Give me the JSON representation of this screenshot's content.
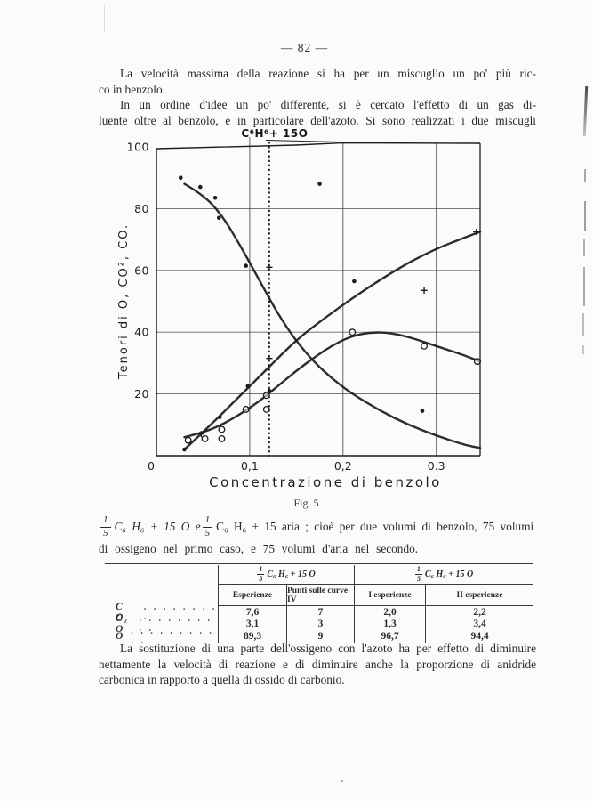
{
  "page": {
    "number": "— 82 —"
  },
  "paragraphs": {
    "p1": {
      "lines": [
        "La velocità massima della reazione si ha per un miscuglio un po' più ric-",
        "co in benzolo."
      ]
    },
    "p2": {
      "lines": [
        "In un ordine d'idee un po' differente, si è cercato l'effetto di un gas di-",
        "luente oltre al benzolo, e in particolare dell'azoto. Si sono realizzati i due miscugli"
      ]
    },
    "p3": {
      "lines": [
        "La sostituzione di una parte dell'ossigeno con l'azoto ha per effetto di diminuire",
        "nettamente la velocità di reazione e di diminuire anche la proporzione di anidride",
        "carbonica in rapporto a quella di ossido di carbonio."
      ]
    }
  },
  "figure": {
    "caption": "Fig. 5."
  },
  "mixture": {
    "frac_num": "1",
    "frac_den": "5",
    "seg1": "C₆ H₆ + 15 O  e",
    "seg2": "C₆ H₆ + 15 aria ; cioè per due volumi di benzolo, 75 volumi",
    "line2": "di ossigeno nel primo caso, e 75 volumi d'aria nel secondo."
  },
  "chart_data": {
    "type": "line",
    "title": "",
    "annotation": "C⁶H⁶+ 15O",
    "xlabel": "Concentrazione di benzolo",
    "ylabel": "Tenori di O, CO², CO.",
    "xlim": [
      0,
      0.347
    ],
    "ylim": [
      0,
      100
    ],
    "grid": true,
    "xticks": [
      {
        "value": 0,
        "label": "0"
      },
      {
        "value": 0.1,
        "label": "0,1"
      },
      {
        "value": 0.2,
        "label": "0,2"
      },
      {
        "value": 0.3,
        "label": "0.3"
      }
    ],
    "yticks": [
      {
        "value": 20,
        "label": "20"
      },
      {
        "value": 40,
        "label": "40"
      },
      {
        "value": 60,
        "label": "60"
      },
      {
        "value": 80,
        "label": "80"
      },
      {
        "value": 100,
        "label": "100"
      }
    ],
    "vline": {
      "x": 0.121,
      "style": "dotted"
    },
    "series": [
      {
        "name": "O",
        "points": [
          [
            0.03,
            88
          ],
          [
            0.05,
            84.5
          ],
          [
            0.07,
            78
          ],
          [
            0.09,
            68
          ],
          [
            0.11,
            57
          ],
          [
            0.13,
            46
          ],
          [
            0.15,
            37
          ],
          [
            0.17,
            30
          ],
          [
            0.19,
            24.5
          ],
          [
            0.21,
            20
          ],
          [
            0.24,
            14.5
          ],
          [
            0.27,
            10
          ],
          [
            0.3,
            6.5
          ],
          [
            0.33,
            3.5
          ],
          [
            0.347,
            2.5
          ]
        ]
      },
      {
        "name": "CO",
        "points": [
          [
            0.03,
            2
          ],
          [
            0.06,
            10.5
          ],
          [
            0.09,
            19.5
          ],
          [
            0.12,
            28.5
          ],
          [
            0.15,
            37.5
          ],
          [
            0.18,
            44.5
          ],
          [
            0.21,
            51
          ],
          [
            0.24,
            57
          ],
          [
            0.27,
            62.5
          ],
          [
            0.3,
            67
          ],
          [
            0.325,
            70
          ],
          [
            0.347,
            72.5
          ]
        ]
      },
      {
        "name": "CO2",
        "points": [
          [
            0.03,
            6
          ],
          [
            0.05,
            7.5
          ],
          [
            0.07,
            10
          ],
          [
            0.09,
            13.5
          ],
          [
            0.11,
            17.5
          ],
          [
            0.13,
            22.5
          ],
          [
            0.15,
            27.5
          ],
          [
            0.17,
            32
          ],
          [
            0.19,
            36
          ],
          [
            0.21,
            38.8
          ],
          [
            0.23,
            40
          ],
          [
            0.25,
            39.8
          ],
          [
            0.27,
            38.5
          ],
          [
            0.29,
            36.5
          ],
          [
            0.31,
            34.5
          ],
          [
            0.33,
            32.5
          ],
          [
            0.347,
            30.5
          ]
        ]
      }
    ],
    "scatter": [
      {
        "name": "experimental-filled-dots",
        "marker": "dot",
        "points": [
          [
            0.026,
            90
          ],
          [
            0.047,
            87
          ],
          [
            0.063,
            83.5
          ],
          [
            0.067,
            77
          ],
          [
            0.096,
            61.5
          ],
          [
            0.175,
            88
          ],
          [
            0.03,
            2
          ],
          [
            0.068,
            12.5
          ],
          [
            0.098,
            22.5
          ],
          [
            0.121,
            21
          ],
          [
            0.212,
            56.5
          ],
          [
            0.285,
            14.5
          ]
        ]
      },
      {
        "name": "experimental-open-circles",
        "marker": "circle",
        "points": [
          [
            0.034,
            5
          ],
          [
            0.052,
            5.5
          ],
          [
            0.07,
            8.5
          ],
          [
            0.07,
            5.5
          ],
          [
            0.096,
            15
          ],
          [
            0.118,
            19.5
          ],
          [
            0.118,
            15
          ],
          [
            0.21,
            40
          ],
          [
            0.287,
            35.5
          ],
          [
            0.344,
            30.5
          ]
        ]
      },
      {
        "name": "experimental-plus-marks",
        "marker": "plus",
        "points": [
          [
            0.048,
            7
          ],
          [
            0.121,
            61
          ],
          [
            0.121,
            31.5
          ],
          [
            0.287,
            53.5
          ],
          [
            0.343,
            72.5
          ]
        ]
      }
    ]
  },
  "table": {
    "groups": [
      {
        "frac_num": "1",
        "frac_den": "5",
        "formula": "C₆ H₆ + 15 O"
      },
      {
        "frac_num": "1",
        "frac_den": "5",
        "formula": "C₆ H₆ + 15 O"
      }
    ],
    "subheaders": [
      "Esperienze",
      "Punti sulle curve IV",
      "I esperienze",
      "II esperienze"
    ],
    "rows": [
      {
        "label": "C O₂",
        "dots": ".  .  .  .  .  .  .  .  .",
        "values": [
          "7,6",
          "7",
          "2,0",
          "2,2"
        ]
      },
      {
        "label": "C O",
        "dots": ".  .  .  .  .  .  .  .  .  .",
        "values": [
          "3,1",
          "3",
          "1,3",
          "3,4"
        ]
      },
      {
        "label": "O",
        "dots": ".  .  .  .  .  .  .  .  .  .  .",
        "values": [
          "89,3",
          "9",
          "96,7",
          "94,4"
        ]
      }
    ]
  }
}
